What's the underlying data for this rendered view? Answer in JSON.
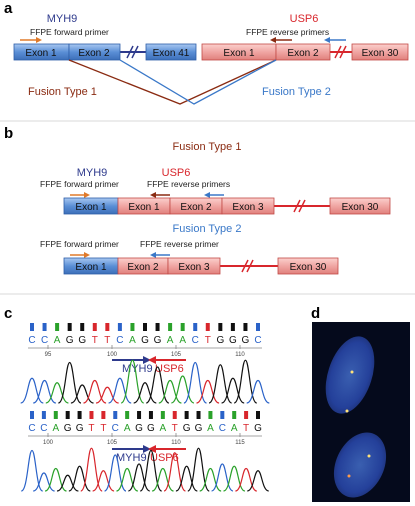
{
  "panels": {
    "a": "a",
    "b": "b",
    "c": "c",
    "d": "d"
  },
  "genes": {
    "myh9": "MYH9",
    "usp6": "USP6"
  },
  "primers": {
    "forward": "FFPE forward primer",
    "reverse": "FFPE reverse primers",
    "reverse_b2": "FFPE reverse primer"
  },
  "exons": {
    "e1": "Exon 1",
    "e2": "Exon 2",
    "e3": "Exon 3",
    "e41": "Exon 41",
    "e30": "Exon 30"
  },
  "fusions": {
    "type1": "Fusion Type 1",
    "type2": "Fusion Type 2"
  },
  "chromatogram1": {
    "bases": [
      "C",
      "C",
      "A",
      "G",
      "G",
      "T",
      "T",
      "C",
      "A",
      "G",
      "G",
      "A",
      "A",
      "C",
      "T",
      "G",
      "G",
      "G",
      "C"
    ],
    "positions": [
      "95",
      "100",
      "105",
      "110"
    ]
  },
  "chromatogram2": {
    "bases": [
      "C",
      "C",
      "A",
      "G",
      "G",
      "T",
      "T",
      "C",
      "A",
      "G",
      "G",
      "A",
      "T",
      "G",
      "G",
      "A",
      "C",
      "A",
      "T",
      "G"
    ],
    "positions": [
      "100",
      "105",
      "110",
      "115"
    ]
  },
  "colors": {
    "blue_exon": "#5b8fd6",
    "red_exon": "#f0a6a3",
    "myh9": "#2e3a8c",
    "usp6": "#d8262c",
    "fusion1": "#8a2b12",
    "fusion2": "#3a78c8",
    "primer_orange": "#e07a2a",
    "base_A": "#2aa12a",
    "base_C": "#2a62c8",
    "base_G": "#111111",
    "base_T": "#d8262c"
  }
}
